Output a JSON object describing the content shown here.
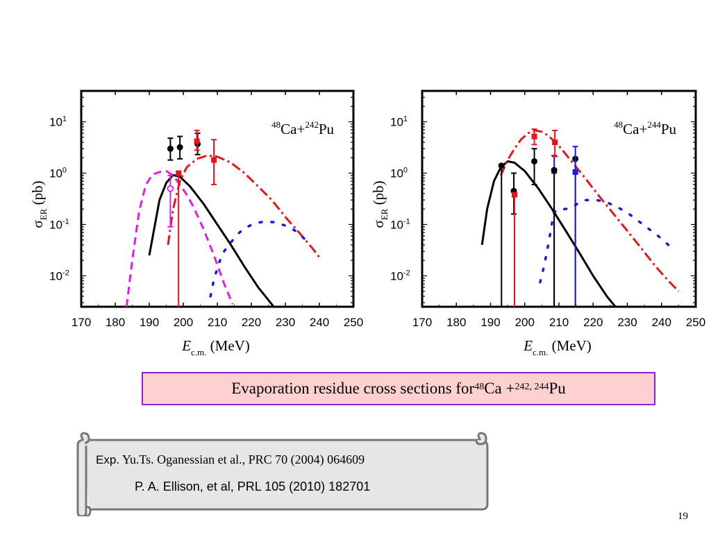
{
  "caption": {
    "prefix": "Evaporation residue cross sections for ",
    "sup1": "48",
    "mid": "Ca + ",
    "sup2": "242, 244",
    "suffix": " Pu"
  },
  "references": {
    "exp_label": "Exp.",
    "ref1": "Yu.Ts. Oganessian  et al., PRC 70 (2004) 064609",
    "ref2": "P. A. Ellison, et al, PRL 105 (2010) 182701"
  },
  "page_number": "19",
  "colors": {
    "red": "#e8141c",
    "black": "#000000",
    "magenta": "#e619e6",
    "blue": "#1a1ae0",
    "caption_bg": "#ffd0d0",
    "caption_border": "#8b1fd1"
  },
  "chart_data": [
    {
      "type": "line",
      "reaction": {
        "sup1": "48",
        "el1": "Ca+",
        "sup2": "242",
        "el2": "Pu"
      },
      "xlabel": {
        "main": "E",
        "sub": "c.m.",
        "unit": " (MeV)"
      },
      "ylabel": {
        "main": "σ",
        "sub": "ER",
        "unit": " (pb)"
      },
      "xlim": [
        170,
        250
      ],
      "ylim": [
        0.0025,
        40
      ],
      "yscale": "log",
      "xticks": [
        "170",
        "180",
        "190",
        "200",
        "210",
        "220",
        "230",
        "240",
        "250"
      ],
      "yticks": [
        {
          "v": 10,
          "exp": "1"
        },
        {
          "v": 1,
          "exp": "0"
        },
        {
          "v": 0.1,
          "exp": "-1"
        },
        {
          "v": 0.01,
          "exp": "-2"
        }
      ],
      "series": [
        {
          "style": "solid",
          "color": "#000000",
          "x": [
            190,
            193,
            195,
            197,
            199,
            202,
            206,
            210,
            214,
            218,
            222,
            226,
            228
          ],
          "y": [
            0.025,
            0.3,
            0.65,
            0.92,
            0.85,
            0.55,
            0.25,
            0.1,
            0.04,
            0.015,
            0.006,
            0.0028,
            0.0018
          ]
        },
        {
          "style": "dashed",
          "color": "#e619e6",
          "x": [
            183.3,
            185,
            187,
            189,
            191,
            193,
            195,
            197,
            199,
            201,
            203,
            206,
            209,
            212,
            214.5
          ],
          "y": [
            0.0025,
            0.02,
            0.18,
            0.6,
            0.95,
            1.05,
            1.1,
            0.9,
            0.6,
            0.38,
            0.22,
            0.08,
            0.025,
            0.007,
            0.0028
          ]
        },
        {
          "style": "dashdot",
          "color": "#e8141c",
          "x": [
            195.5,
            197,
            199,
            201,
            204,
            207,
            210,
            214,
            218,
            222,
            226,
            230,
            234,
            238,
            240
          ],
          "y": [
            0.04,
            0.2,
            0.7,
            1.3,
            1.9,
            2.2,
            2.1,
            1.6,
            1.0,
            0.55,
            0.3,
            0.14,
            0.07,
            0.034,
            0.023
          ]
        },
        {
          "style": "dotted",
          "color": "#1a1ae0",
          "x": [
            208,
            209,
            210,
            211,
            212,
            214,
            216,
            218,
            221,
            224,
            227,
            230,
            233,
            236
          ],
          "y": [
            0.004,
            0.0085,
            0.014,
            0.022,
            0.03,
            0.045,
            0.065,
            0.085,
            0.105,
            0.115,
            0.11,
            0.095,
            0.075,
            0.05
          ]
        }
      ],
      "points": [
        {
          "x": 196.2,
          "y": 3.0,
          "ylo": 1.8,
          "yhi": 4.8,
          "color": "#000000",
          "marker": "circle"
        },
        {
          "x": 199.0,
          "y": 3.2,
          "ylo": 1.9,
          "yhi": 5.2,
          "color": "#000000",
          "marker": "circle"
        },
        {
          "x": 204.2,
          "y": 3.7,
          "ylo": 2.3,
          "yhi": 6.0,
          "color": "#000000",
          "marker": "circle"
        },
        {
          "x": 204.0,
          "y": 4.2,
          "ylo": 2.8,
          "yhi": 6.8,
          "color": "#e8141c",
          "marker": "square"
        },
        {
          "x": 209.0,
          "y": 1.8,
          "ylo": 0.6,
          "yhi": 4.5,
          "color": "#e8141c",
          "marker": "square"
        },
        {
          "x": 198.6,
          "y": 1.0,
          "ylo": 0.0025,
          "yhi": 1.05,
          "color": "#e8141c",
          "marker": "square"
        },
        {
          "x": 196.2,
          "y": 0.5,
          "ylo": 0.09,
          "yhi": 0.9,
          "color": "#e619e6",
          "marker": "open-circle"
        }
      ]
    },
    {
      "type": "line",
      "reaction": {
        "sup1": "48",
        "el1": "Ca+",
        "sup2": "244",
        "el2": "Pu"
      },
      "xlabel": {
        "main": "E",
        "sub": "c.m.",
        "unit": " (MeV)"
      },
      "ylabel": {
        "main": "σ",
        "sub": "ER",
        "unit": " (pb)"
      },
      "xlim": [
        170,
        250
      ],
      "ylim": [
        0.0025,
        40
      ],
      "yscale": "log",
      "xticks": [
        "170",
        "180",
        "190",
        "200",
        "210",
        "220",
        "230",
        "240",
        "250"
      ],
      "yticks": [
        {
          "v": 10,
          "exp": "1"
        },
        {
          "v": 1,
          "exp": "0"
        },
        {
          "v": 0.1,
          "exp": "-1"
        },
        {
          "v": 0.01,
          "exp": "-2"
        }
      ],
      "series": [
        {
          "style": "solid",
          "color": "#000000",
          "x": [
            187.5,
            189,
            191,
            193,
            195,
            197,
            200,
            204,
            208,
            212,
            216,
            220,
            224,
            226.5
          ],
          "y": [
            0.04,
            0.2,
            0.7,
            1.3,
            1.7,
            1.6,
            1.1,
            0.5,
            0.2,
            0.075,
            0.028,
            0.01,
            0.004,
            0.0025
          ]
        },
        {
          "style": "dashdot",
          "color": "#e8141c",
          "x": [
            193,
            195,
            197,
            199,
            201,
            203,
            205,
            207,
            210,
            214,
            218,
            222,
            226,
            230,
            234,
            238,
            242,
            245
          ],
          "y": [
            0.9,
            1.8,
            3.0,
            4.6,
            6.0,
            6.8,
            6.4,
            5.3,
            3.4,
            1.6,
            0.75,
            0.34,
            0.16,
            0.075,
            0.035,
            0.016,
            0.008,
            0.005
          ]
        },
        {
          "style": "dotted",
          "color": "#1a1ae0",
          "x": [
            204.5,
            205.5,
            206.5,
            207.5,
            208.5,
            210,
            212,
            214,
            216,
            218,
            221,
            224,
            227,
            230,
            233,
            236,
            239,
            242,
            244
          ],
          "y": [
            0.0075,
            0.014,
            0.03,
            0.07,
            0.17,
            0.2,
            0.2,
            0.22,
            0.27,
            0.3,
            0.3,
            0.27,
            0.22,
            0.17,
            0.12,
            0.085,
            0.06,
            0.04,
            0.03
          ]
        }
      ],
      "points": [
        {
          "x": 193.2,
          "y": 1.4,
          "ylo": 0.0025,
          "yhi": 1.5,
          "color": "#000000",
          "marker": "circle"
        },
        {
          "x": 196.8,
          "y": 0.45,
          "ylo": 0.16,
          "yhi": 1.0,
          "color": "#000000",
          "marker": "circle"
        },
        {
          "x": 197.0,
          "y": 0.38,
          "ylo": 0.0025,
          "yhi": 0.4,
          "color": "#e8141c",
          "marker": "square"
        },
        {
          "x": 202.8,
          "y": 1.7,
          "ylo": 0.6,
          "yhi": 3.0,
          "color": "#000000",
          "marker": "circle"
        },
        {
          "x": 202.8,
          "y": 5.2,
          "ylo": 3.6,
          "yhi": 7.2,
          "color": "#e8141c",
          "marker": "square"
        },
        {
          "x": 208.6,
          "y": 1.1,
          "ylo": 0.0025,
          "yhi": 2.2,
          "color": "#1a1ae0",
          "marker": "square"
        },
        {
          "x": 208.6,
          "y": 1.15,
          "ylo": 0.0025,
          "yhi": 1.2,
          "color": "#000000",
          "marker": "circle"
        },
        {
          "x": 208.8,
          "y": 4.0,
          "ylo": 2.1,
          "yhi": 6.8,
          "color": "#e8141c",
          "marker": "square"
        },
        {
          "x": 214.8,
          "y": 1.9,
          "ylo": 0.0025,
          "yhi": 2.0,
          "color": "#000000",
          "marker": "circle"
        },
        {
          "x": 214.8,
          "y": 1.05,
          "ylo": 0.0025,
          "yhi": 3.3,
          "color": "#1a1ae0",
          "marker": "square"
        }
      ]
    }
  ]
}
